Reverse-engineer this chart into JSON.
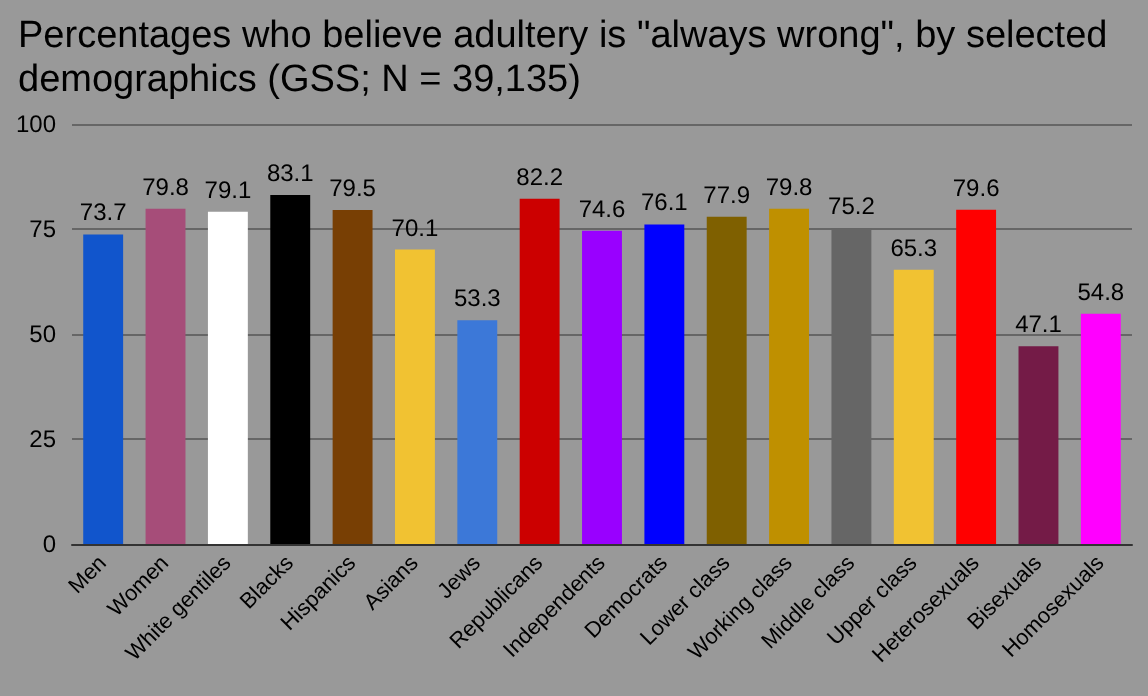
{
  "chart_data": {
    "type": "bar",
    "title": "Percentages who believe adultery is \"always wrong\", by selected demographics (GSS; N = 39,135)",
    "categories": [
      "Men",
      "Women",
      "White gentiles",
      "Blacks",
      "Hispanics",
      "Asians",
      "Jews",
      "Republicans",
      "Independents",
      "Democrats",
      "Lower class",
      "Working class",
      "Middle class",
      "Upper class",
      "Heterosexuals",
      "Bisexuals",
      "Homosexuals"
    ],
    "values": [
      73.7,
      79.8,
      79.1,
      83.1,
      79.5,
      70.1,
      53.3,
      82.2,
      74.6,
      76.1,
      77.9,
      79.8,
      75.2,
      65.3,
      79.6,
      47.1,
      54.8
    ],
    "colors": [
      "#1155cc",
      "#a64d79",
      "#ffffff",
      "#000000",
      "#783f04",
      "#f1c232",
      "#3c78d8",
      "#cc0000",
      "#9900ff",
      "#0000ff",
      "#7f6000",
      "#bf9000",
      "#666666",
      "#f1c232",
      "#ff0000",
      "#741b47",
      "#ff00ff"
    ],
    "ylim": [
      0,
      100
    ],
    "yticks": [
      0,
      25,
      50,
      75,
      100
    ],
    "grid": "y",
    "data_labels": true
  }
}
